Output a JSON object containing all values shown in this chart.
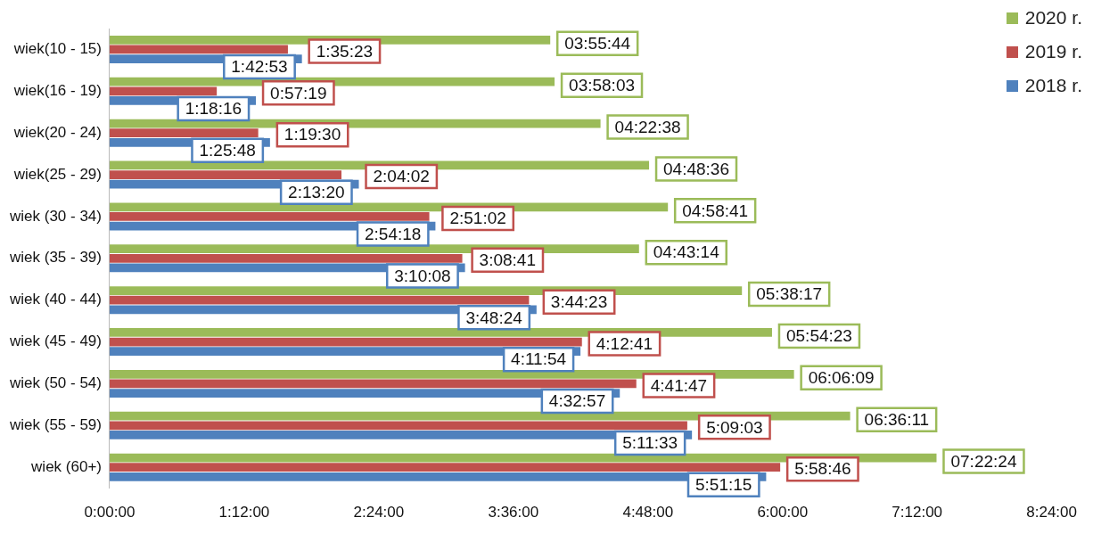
{
  "chart_data": {
    "type": "bar",
    "orientation": "horizontal",
    "categories": [
      "wiek(10 - 15)",
      "wiek(16 - 19)",
      "wiek(20 - 24)",
      "wiek(25 - 29)",
      "wiek (30 - 34)",
      "wiek (35 - 39)",
      "wiek (40 - 44)",
      "wiek (45 - 49)",
      "wiek (50 - 54)",
      "wiek (55 - 59)",
      "wiek (60+)"
    ],
    "series": [
      {
        "name": "2020 r.",
        "color": "#9bbb59",
        "values": [
          3.9289,
          3.9675,
          4.3772,
          4.81,
          4.9781,
          4.7206,
          5.6381,
          5.9064,
          6.1025,
          6.6031,
          7.3733
        ],
        "value_labels": [
          "03:55:44",
          "03:58:03",
          "04:22:38",
          "04:48:36",
          "04:58:41",
          "04:43:14",
          "05:38:17",
          "05:54:23",
          "06:06:09",
          "06:36:11",
          "07:22:24"
        ]
      },
      {
        "name": "2019 r.",
        "color": "#c0504d",
        "values": [
          1.5897,
          0.9553,
          1.325,
          2.0672,
          2.8506,
          3.1447,
          3.7397,
          4.2114,
          4.6964,
          5.1508,
          5.9794
        ],
        "value_labels": [
          "1:35:23",
          "0:57:19",
          "1:19:30",
          "2:04:02",
          "2:51:02",
          "3:08:41",
          "3:44:23",
          "4:12:41",
          "4:41:47",
          "5:09:03",
          "5:58:46"
        ]
      },
      {
        "name": "2018 r.",
        "color": "#4f81bd",
        "values": [
          1.7147,
          1.3044,
          1.43,
          2.2222,
          2.905,
          3.1689,
          3.8067,
          4.1983,
          4.5492,
          5.1925,
          5.8542
        ],
        "value_labels": [
          "1:42:53",
          "1:18:16",
          "1:25:48",
          "2:13:20",
          "2:54:18",
          "3:10:08",
          "3:48:24",
          "4:11:54",
          "4:32:57",
          "5:11:33",
          "5:51:15"
        ]
      }
    ],
    "xlim": [
      0,
      8.4
    ],
    "xticks": [
      {
        "value": 0,
        "label": "0:00:00"
      },
      {
        "value": 1.2,
        "label": "1:12:00"
      },
      {
        "value": 2.4,
        "label": "2:24:00"
      },
      {
        "value": 3.6,
        "label": "3:36:00"
      },
      {
        "value": 4.8,
        "label": "4:48:00"
      },
      {
        "value": 6,
        "label": "6:00:00"
      },
      {
        "value": 7.2,
        "label": "7:12:00"
      },
      {
        "value": 8.4,
        "label": "8:24:00"
      }
    ],
    "grid": false,
    "legend": "top right"
  }
}
